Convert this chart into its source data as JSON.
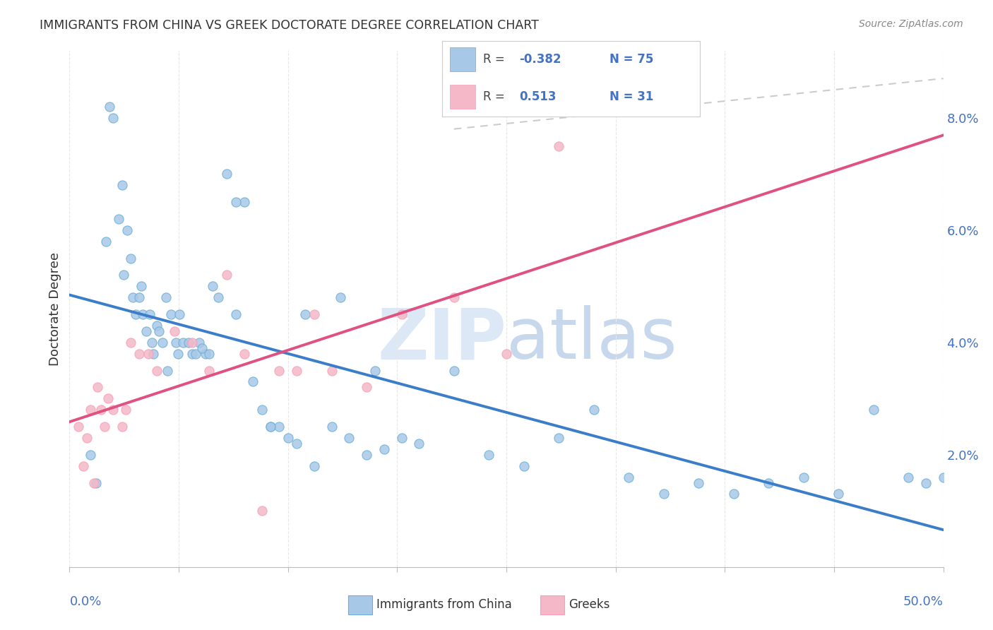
{
  "title": "IMMIGRANTS FROM CHINA VS GREEK DOCTORATE DEGREE CORRELATION CHART",
  "source": "Source: ZipAtlas.com",
  "ylabel": "Doctorate Degree",
  "xmin": 0.0,
  "xmax": 50.0,
  "ymin": 0.0,
  "ymax": 9.2,
  "ytick_vals": [
    2.0,
    4.0,
    6.0,
    8.0
  ],
  "xtick_vals": [
    0.0,
    6.25,
    12.5,
    18.75,
    25.0,
    31.25,
    37.5,
    43.75,
    50.0
  ],
  "blue_color": "#a8c8e8",
  "blue_edge": "#6baed6",
  "pink_color": "#f4b8c8",
  "pink_edge": "#fa9fb5",
  "blue_line_color": "#3a7dc9",
  "pink_line_color": "#e05080",
  "dash_color": "#cccccc",
  "grid_color": "#e8e8e8",
  "text_color": "#333333",
  "axis_label_color": "#4472c4",
  "watermark_color": "#dce8f5",
  "blue_x": [
    1.2,
    1.5,
    2.1,
    2.3,
    2.8,
    3.0,
    3.1,
    3.3,
    3.6,
    3.8,
    4.0,
    4.2,
    4.4,
    4.6,
    4.8,
    5.0,
    5.3,
    5.5,
    5.8,
    6.1,
    6.3,
    6.5,
    6.8,
    7.0,
    7.4,
    7.8,
    8.2,
    8.5,
    9.0,
    9.5,
    10.0,
    10.5,
    11.0,
    11.5,
    12.0,
    12.5,
    13.0,
    14.0,
    15.0,
    16.0,
    17.0,
    18.0,
    19.0,
    20.0,
    22.0,
    24.0,
    26.0,
    28.0,
    30.0,
    32.0,
    34.0,
    36.0,
    38.0,
    40.0,
    42.0,
    44.0,
    46.0,
    48.0,
    49.0,
    50.0,
    2.5,
    3.5,
    4.1,
    4.7,
    5.1,
    5.6,
    6.2,
    7.2,
    7.6,
    8.0,
    9.5,
    11.5,
    13.5,
    15.5,
    17.5
  ],
  "blue_y": [
    2.0,
    1.5,
    5.8,
    8.2,
    6.2,
    6.8,
    5.2,
    6.0,
    4.8,
    4.5,
    4.8,
    4.5,
    4.2,
    4.5,
    3.8,
    4.3,
    4.0,
    4.8,
    4.5,
    4.0,
    4.5,
    4.0,
    4.0,
    3.8,
    4.0,
    3.8,
    5.0,
    4.8,
    7.0,
    4.5,
    6.5,
    3.3,
    2.8,
    2.5,
    2.5,
    2.3,
    2.2,
    1.8,
    2.5,
    2.3,
    2.0,
    2.1,
    2.3,
    2.2,
    3.5,
    2.0,
    1.8,
    2.3,
    2.8,
    1.6,
    1.3,
    1.5,
    1.3,
    1.5,
    1.6,
    1.3,
    2.8,
    1.6,
    1.5,
    1.6,
    8.0,
    5.5,
    5.0,
    4.0,
    4.2,
    3.5,
    3.8,
    3.8,
    3.9,
    3.8,
    6.5,
    2.5,
    4.5,
    4.8,
    3.5
  ],
  "pink_x": [
    0.5,
    0.8,
    1.0,
    1.2,
    1.4,
    1.6,
    1.8,
    2.0,
    2.2,
    2.5,
    3.0,
    3.2,
    3.5,
    4.0,
    4.5,
    5.0,
    6.0,
    7.0,
    8.0,
    9.0,
    10.0,
    11.0,
    12.0,
    13.0,
    14.0,
    15.0,
    17.0,
    19.0,
    22.0,
    25.0,
    28.0
  ],
  "pink_y": [
    2.5,
    1.8,
    2.3,
    2.8,
    1.5,
    3.2,
    2.8,
    2.5,
    3.0,
    2.8,
    2.5,
    2.8,
    4.0,
    3.8,
    3.8,
    3.5,
    4.2,
    4.0,
    3.5,
    5.2,
    3.8,
    1.0,
    3.5,
    3.5,
    4.5,
    3.5,
    3.2,
    4.5,
    4.8,
    3.8,
    7.5
  ]
}
